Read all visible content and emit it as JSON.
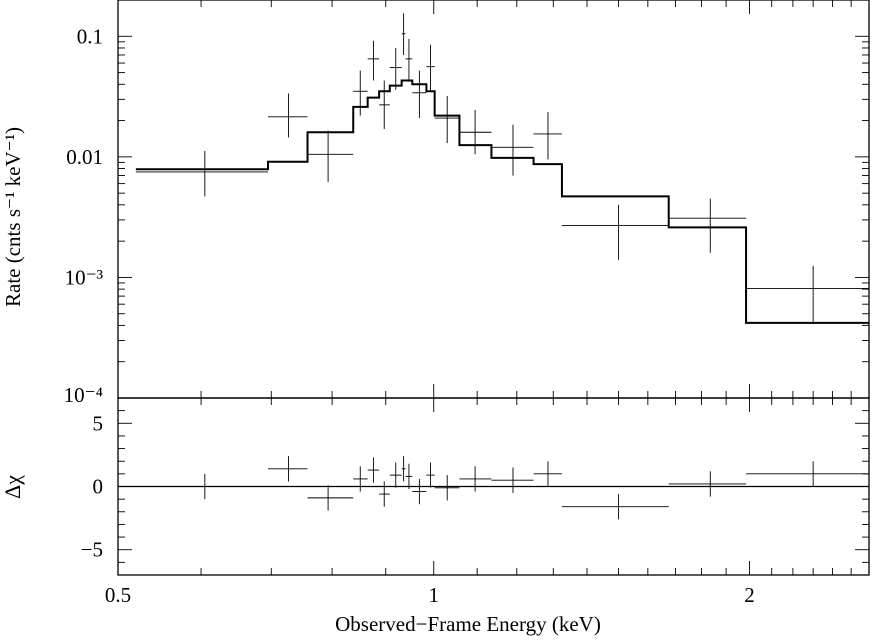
{
  "chart_data": [
    {
      "panel": "spectrum",
      "type": "line",
      "ylabel": "Rate (cnts s⁻¹ keV⁻¹)",
      "xscale": "log",
      "yscale": "log",
      "xlim": [
        0.5,
        2.6
      ],
      "ylim": [
        0.0001,
        0.2
      ],
      "y_ticks": [
        {
          "value": 0.1,
          "label": "0.1"
        },
        {
          "value": 0.01,
          "label": "0.01"
        },
        {
          "value": 0.001,
          "label": "10⁻³"
        },
        {
          "value": 0.0001,
          "label": "10⁻⁴"
        }
      ],
      "data_points": [
        {
          "x": 0.605,
          "x_lo": 0.52,
          "x_hi": 0.695,
          "y": 0.0075,
          "y_lo": 0.0047,
          "y_hi": 0.0112
        },
        {
          "x": 0.727,
          "x_lo": 0.695,
          "x_hi": 0.758,
          "y": 0.0215,
          "y_lo": 0.0145,
          "y_hi": 0.0335
        },
        {
          "x": 0.793,
          "x_lo": 0.758,
          "x_hi": 0.838,
          "y": 0.0105,
          "y_lo": 0.0062,
          "y_hi": 0.0165
        },
        {
          "x": 0.851,
          "x_lo": 0.838,
          "x_hi": 0.865,
          "y": 0.035,
          "y_lo": 0.022,
          "y_hi": 0.052
        },
        {
          "x": 0.876,
          "x_lo": 0.865,
          "x_hi": 0.887,
          "y": 0.065,
          "y_lo": 0.043,
          "y_hi": 0.092
        },
        {
          "x": 0.897,
          "x_lo": 0.887,
          "x_hi": 0.908,
          "y": 0.027,
          "y_lo": 0.017,
          "y_hi": 0.043
        },
        {
          "x": 0.92,
          "x_lo": 0.908,
          "x_hi": 0.932,
          "y": 0.055,
          "y_lo": 0.036,
          "y_hi": 0.08
        },
        {
          "x": 0.936,
          "x_lo": 0.932,
          "x_hi": 0.94,
          "y": 0.105,
          "y_lo": 0.07,
          "y_hi": 0.155
        },
        {
          "x": 0.947,
          "x_lo": 0.94,
          "x_hi": 0.954,
          "y": 0.065,
          "y_lo": 0.042,
          "y_hi": 0.095
        },
        {
          "x": 0.969,
          "x_lo": 0.954,
          "x_hi": 0.984,
          "y": 0.034,
          "y_lo": 0.021,
          "y_hi": 0.052
        },
        {
          "x": 0.993,
          "x_lo": 0.984,
          "x_hi": 1.002,
          "y": 0.056,
          "y_lo": 0.035,
          "y_hi": 0.085
        },
        {
          "x": 1.03,
          "x_lo": 1.002,
          "x_hi": 1.058,
          "y": 0.021,
          "y_lo": 0.013,
          "y_hi": 0.032
        },
        {
          "x": 1.095,
          "x_lo": 1.058,
          "x_hi": 1.135,
          "y": 0.016,
          "y_lo": 0.0105,
          "y_hi": 0.0245
        },
        {
          "x": 1.19,
          "x_lo": 1.135,
          "x_hi": 1.245,
          "y": 0.012,
          "y_lo": 0.007,
          "y_hi": 0.0185
        },
        {
          "x": 1.285,
          "x_lo": 1.245,
          "x_hi": 1.325,
          "y": 0.0155,
          "y_lo": 0.0095,
          "y_hi": 0.0235
        },
        {
          "x": 1.5,
          "x_lo": 1.325,
          "x_hi": 1.675,
          "y": 0.0027,
          "y_lo": 0.0014,
          "y_hi": 0.004
        },
        {
          "x": 1.835,
          "x_lo": 1.675,
          "x_hi": 1.985,
          "y": 0.0031,
          "y_lo": 0.0016,
          "y_hi": 0.0045
        },
        {
          "x": 2.3,
          "x_lo": 1.985,
          "x_hi": 2.6,
          "y": 0.00081,
          "y_lo": 0.00041,
          "y_hi": 0.00125
        }
      ],
      "model_steps": [
        {
          "x_lo": 0.52,
          "x_hi": 0.695,
          "y": 0.0079
        },
        {
          "x_lo": 0.695,
          "x_hi": 0.758,
          "y": 0.0091
        },
        {
          "x_lo": 0.758,
          "x_hi": 0.838,
          "y": 0.016
        },
        {
          "x_lo": 0.838,
          "x_hi": 0.865,
          "y": 0.026
        },
        {
          "x_lo": 0.865,
          "x_hi": 0.887,
          "y": 0.031
        },
        {
          "x_lo": 0.887,
          "x_hi": 0.908,
          "y": 0.035
        },
        {
          "x_lo": 0.908,
          "x_hi": 0.932,
          "y": 0.039
        },
        {
          "x_lo": 0.932,
          "x_hi": 0.954,
          "y": 0.043
        },
        {
          "x_lo": 0.954,
          "x_hi": 0.984,
          "y": 0.04
        },
        {
          "x_lo": 0.984,
          "x_hi": 1.002,
          "y": 0.035
        },
        {
          "x_lo": 1.002,
          "x_hi": 1.058,
          "y": 0.022
        },
        {
          "x_lo": 1.058,
          "x_hi": 1.135,
          "y": 0.0125
        },
        {
          "x_lo": 1.135,
          "x_hi": 1.245,
          "y": 0.0098
        },
        {
          "x_lo": 1.245,
          "x_hi": 1.325,
          "y": 0.0087
        },
        {
          "x_lo": 1.325,
          "x_hi": 1.675,
          "y": 0.0047
        },
        {
          "x_lo": 1.675,
          "x_hi": 1.985,
          "y": 0.0026
        },
        {
          "x_lo": 1.985,
          "x_hi": 2.6,
          "y": 0.00042
        }
      ]
    },
    {
      "panel": "residuals",
      "type": "scatter",
      "xlabel": "Observed−Frame Energy (keV)",
      "ylabel": "Δχ",
      "xscale": "log",
      "xlim": [
        0.5,
        2.6
      ],
      "ylim": [
        -7,
        7
      ],
      "x_ticks": [
        {
          "value": 0.5,
          "label": "0.5"
        },
        {
          "value": 1,
          "label": "1"
        },
        {
          "value": 2,
          "label": "2"
        }
      ],
      "y_ticks": [
        {
          "value": 5,
          "label": "5"
        },
        {
          "value": 0,
          "label": "0"
        },
        {
          "value": -5,
          "label": "−5"
        }
      ],
      "zero_line": 0,
      "data_points": [
        {
          "x": 0.605,
          "x_lo": 0.52,
          "x_hi": 0.695,
          "y": 0.0,
          "y_err": 1.0
        },
        {
          "x": 0.727,
          "x_lo": 0.695,
          "x_hi": 0.758,
          "y": 1.4,
          "y_err": 1.0
        },
        {
          "x": 0.793,
          "x_lo": 0.758,
          "x_hi": 0.838,
          "y": -0.9,
          "y_err": 1.0
        },
        {
          "x": 0.851,
          "x_lo": 0.838,
          "x_hi": 0.865,
          "y": 0.6,
          "y_err": 1.0
        },
        {
          "x": 0.876,
          "x_lo": 0.865,
          "x_hi": 0.887,
          "y": 1.3,
          "y_err": 1.0
        },
        {
          "x": 0.897,
          "x_lo": 0.887,
          "x_hi": 0.908,
          "y": -0.6,
          "y_err": 1.0
        },
        {
          "x": 0.92,
          "x_lo": 0.908,
          "x_hi": 0.932,
          "y": 0.9,
          "y_err": 1.0
        },
        {
          "x": 0.936,
          "x_lo": 0.932,
          "x_hi": 0.94,
          "y": 1.4,
          "y_err": 1.0
        },
        {
          "x": 0.947,
          "x_lo": 0.94,
          "x_hi": 0.954,
          "y": 0.8,
          "y_err": 1.0
        },
        {
          "x": 0.969,
          "x_lo": 0.954,
          "x_hi": 0.984,
          "y": -0.4,
          "y_err": 1.0
        },
        {
          "x": 0.993,
          "x_lo": 0.984,
          "x_hi": 1.002,
          "y": 0.9,
          "y_err": 1.0
        },
        {
          "x": 1.03,
          "x_lo": 1.002,
          "x_hi": 1.058,
          "y": -0.1,
          "y_err": 1.0
        },
        {
          "x": 1.095,
          "x_lo": 1.058,
          "x_hi": 1.135,
          "y": 0.6,
          "y_err": 1.0
        },
        {
          "x": 1.19,
          "x_lo": 1.135,
          "x_hi": 1.245,
          "y": 0.5,
          "y_err": 1.0
        },
        {
          "x": 1.285,
          "x_lo": 1.245,
          "x_hi": 1.325,
          "y": 1.0,
          "y_err": 1.0
        },
        {
          "x": 1.5,
          "x_lo": 1.325,
          "x_hi": 1.675,
          "y": -1.6,
          "y_err": 1.0
        },
        {
          "x": 1.835,
          "x_lo": 1.675,
          "x_hi": 1.985,
          "y": 0.2,
          "y_err": 1.0
        },
        {
          "x": 2.3,
          "x_lo": 1.985,
          "x_hi": 2.6,
          "y": 1.0,
          "y_err": 1.0
        }
      ]
    }
  ]
}
